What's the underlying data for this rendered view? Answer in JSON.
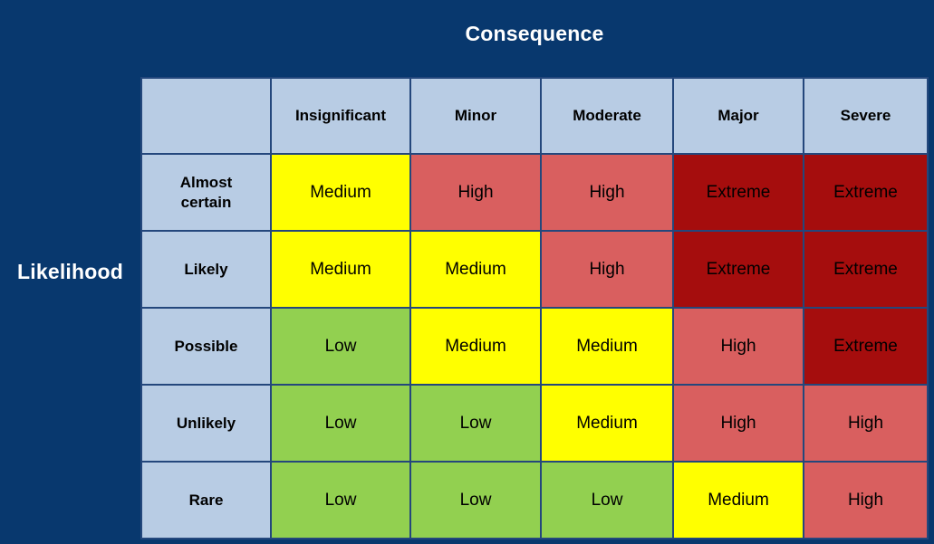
{
  "colors": {
    "background": "#08386E",
    "grid_line": "#24477C",
    "header_cell_bg": "#B8CCE4",
    "axis_title_text": "#FFFFFF",
    "cell_text": "#000000"
  },
  "chart_data": {
    "type": "heatmap",
    "xlabel": "Consequence",
    "ylabel": "Likelihood",
    "x_categories": [
      "Insignificant",
      "Minor",
      "Moderate",
      "Major",
      "Severe"
    ],
    "y_categories": [
      "Almost certain",
      "Likely",
      "Possible",
      "Unlikely",
      "Rare"
    ],
    "cells": [
      [
        "Medium",
        "High",
        "High",
        "Extreme",
        "Extreme"
      ],
      [
        "Medium",
        "Medium",
        "High",
        "Extreme",
        "Extreme"
      ],
      [
        "Low",
        "Medium",
        "Medium",
        "High",
        "Extreme"
      ],
      [
        "Low",
        "Low",
        "Medium",
        "High",
        "High"
      ],
      [
        "Low",
        "Low",
        "Low",
        "Medium",
        "High"
      ]
    ],
    "level_colors": {
      "Low": "#92D050",
      "Medium": "#FFFF00",
      "High": "#D95F5F",
      "Extreme": "#A50D0D"
    },
    "legend_position": "none",
    "grid": true
  }
}
